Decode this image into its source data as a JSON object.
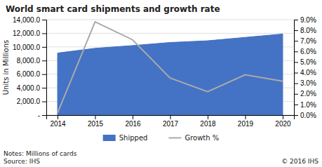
{
  "chart_data": {
    "type": "area",
    "title": "World smart card shipments and growth rate",
    "x": [
      2014,
      2015,
      2016,
      2017,
      2018,
      2019,
      2020
    ],
    "xlim": [
      2013.7,
      2020.3
    ],
    "xticks": [
      2014,
      2015,
      2016,
      2017,
      2018,
      2019,
      2020
    ],
    "ylabel": "Units in Millions",
    "ylim": [
      0,
      14000
    ],
    "yticks": [
      {
        "value": 0,
        "label": "-"
      },
      {
        "value": 2000,
        "label": "2,000.0"
      },
      {
        "value": 4000,
        "label": "4,000.0"
      },
      {
        "value": 6000,
        "label": "6,000.0"
      },
      {
        "value": 8000,
        "label": "8,000.0"
      },
      {
        "value": 10000,
        "label": "10,000.0"
      },
      {
        "value": 12000,
        "label": "12,000.0"
      },
      {
        "value": 14000,
        "label": "14,000.0"
      }
    ],
    "y2lim": [
      0,
      0.09
    ],
    "y2ticks": [
      {
        "value": 0.0,
        "label": "0.0%"
      },
      {
        "value": 0.01,
        "label": "1.0%"
      },
      {
        "value": 0.02,
        "label": "2.0%"
      },
      {
        "value": 0.03,
        "label": "3.0%"
      },
      {
        "value": 0.04,
        "label": "4.0%"
      },
      {
        "value": 0.05,
        "label": "5.0%"
      },
      {
        "value": 0.06,
        "label": "6.0%"
      },
      {
        "value": 0.07,
        "label": "7.0%"
      },
      {
        "value": 0.08,
        "label": "8.0%"
      },
      {
        "value": 0.09,
        "label": "9.0%"
      }
    ],
    "grid": true,
    "legend": "bottom",
    "series": [
      {
        "name": "Shipped",
        "type": "area",
        "color": "#4472C4",
        "values": [
          9100,
          9800,
          10200,
          10650,
          10900,
          11400,
          11900
        ]
      },
      {
        "name": "Growth %",
        "type": "line",
        "color": "#aaaaaa",
        "axis": "y2",
        "values": [
          0.002,
          0.088,
          0.071,
          0.035,
          0.022,
          0.038,
          0.032
        ]
      }
    ],
    "annotations": [
      "Notes: Millions of cards\nSource: IHS",
      "© 2016 IHS"
    ]
  }
}
